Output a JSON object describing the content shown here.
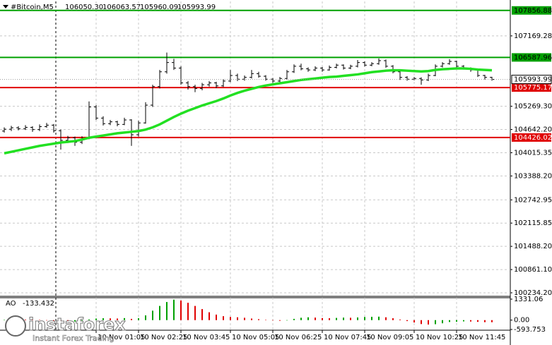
{
  "header": {
    "symbol": "#Bitcoin,M5",
    "values": [
      {
        "value": 106050.3,
        "label": "106050.30"
      },
      {
        "value": 106063.57,
        "label": "106063.57"
      },
      {
        "value": 105960.09,
        "label": "105960.09"
      },
      {
        "value": 105993.99,
        "label": "105993.99"
      }
    ]
  },
  "chart_data": {
    "type": "candlestick",
    "categories": [
      null,
      null,
      null,
      null,
      null,
      null,
      null,
      null,
      null,
      null,
      null,
      null,
      null,
      "10 Nov 01:05",
      null,
      null,
      null,
      null,
      null,
      "10 Nov 02:25",
      null,
      null,
      null,
      null,
      null,
      "10 Nov 03:45",
      null,
      null,
      null,
      null,
      null,
      null,
      "10 Nov 05:05",
      null,
      null,
      null,
      null,
      null,
      "10 Nov 06:25",
      null,
      null,
      null,
      null,
      null,
      null,
      "10 Nov 07:45",
      null,
      null,
      null,
      null,
      null,
      "10 Nov 09:05",
      null,
      null,
      null,
      null,
      null,
      null,
      "10 Nov 10:25",
      null,
      null,
      null,
      null,
      null,
      "10 Nov 11:45",
      null,
      null,
      null,
      null,
      null
    ],
    "ohlc": [
      [
        104600,
        104700,
        104560,
        104650
      ],
      [
        104650,
        104740,
        104600,
        104690
      ],
      [
        104690,
        104730,
        104620,
        104660
      ],
      [
        104660,
        104760,
        104630,
        104700
      ],
      [
        104700,
        104730,
        104580,
        104640
      ],
      [
        104640,
        104780,
        104600,
        104720
      ],
      [
        104720,
        104820,
        104690,
        104760
      ],
      [
        104760,
        104790,
        104560,
        104610
      ],
      [
        104610,
        104640,
        104100,
        104350
      ],
      [
        104350,
        104470,
        104280,
        104420
      ],
      [
        104420,
        104450,
        104200,
        104300
      ],
      [
        104300,
        104460,
        104250,
        104400
      ],
      [
        104400,
        105400,
        104380,
        105250
      ],
      [
        105250,
        105300,
        104900,
        104950
      ],
      [
        104950,
        105000,
        104750,
        104800
      ],
      [
        104800,
        104900,
        104760,
        104850
      ],
      [
        104850,
        104880,
        104730,
        104780
      ],
      [
        104780,
        104960,
        104760,
        104900
      ],
      [
        104900,
        104920,
        104200,
        104500
      ],
      [
        104500,
        104880,
        104450,
        104820
      ],
      [
        104820,
        105380,
        104800,
        105300
      ],
      [
        105300,
        105850,
        105250,
        105800
      ],
      [
        105800,
        106250,
        105750,
        106200
      ],
      [
        106200,
        106720,
        106150,
        106450
      ],
      [
        106450,
        106550,
        106250,
        106300
      ],
      [
        106300,
        106350,
        105850,
        105900
      ],
      [
        105900,
        105950,
        105720,
        105800
      ],
      [
        105800,
        105850,
        105650,
        105750
      ],
      [
        105750,
        105900,
        105700,
        105850
      ],
      [
        105850,
        105950,
        105800,
        105900
      ],
      [
        105900,
        105930,
        105760,
        105820
      ],
      [
        105820,
        106000,
        105790,
        105950
      ],
      [
        105950,
        106250,
        105920,
        106100
      ],
      [
        106100,
        106150,
        105950,
        106000
      ],
      [
        106000,
        106100,
        105960,
        106050
      ],
      [
        106050,
        106250,
        106020,
        106150
      ],
      [
        106150,
        106200,
        106040,
        106080
      ],
      [
        106080,
        106110,
        105960,
        106000
      ],
      [
        106000,
        106030,
        105900,
        105950
      ],
      [
        105950,
        106060,
        105920,
        106020
      ],
      [
        106020,
        106250,
        105990,
        106200
      ],
      [
        106200,
        106400,
        106170,
        106350
      ],
      [
        106350,
        106420,
        106240,
        106280
      ],
      [
        106280,
        106320,
        106200,
        106250
      ],
      [
        106250,
        106350,
        106220,
        106300
      ],
      [
        106300,
        106330,
        106200,
        106250
      ],
      [
        106250,
        106370,
        106230,
        106320
      ],
      [
        106320,
        106420,
        106290,
        106380
      ],
      [
        106380,
        106400,
        106260,
        106300
      ],
      [
        106300,
        106390,
        106270,
        106350
      ],
      [
        106350,
        106520,
        106320,
        106450
      ],
      [
        106450,
        106480,
        106340,
        106380
      ],
      [
        106380,
        106460,
        106350,
        106420
      ],
      [
        106420,
        106560,
        106390,
        106500
      ],
      [
        106500,
        106530,
        106310,
        106350
      ],
      [
        106350,
        106380,
        106160,
        106200
      ],
      [
        106200,
        106230,
        105980,
        106050
      ],
      [
        106050,
        106080,
        105960,
        106000
      ],
      [
        106000,
        106060,
        105970,
        106020
      ],
      [
        106020,
        106050,
        105850,
        105980
      ],
      [
        105980,
        106150,
        105950,
        106100
      ],
      [
        106100,
        106400,
        106080,
        106350
      ],
      [
        106350,
        106460,
        106320,
        106420
      ],
      [
        106420,
        106540,
        106390,
        106480
      ],
      [
        106480,
        106500,
        106310,
        106350
      ],
      [
        106350,
        106380,
        106260,
        106300
      ],
      [
        106300,
        106320,
        106200,
        106250
      ],
      [
        106250,
        106280,
        106060,
        106100
      ],
      [
        106100,
        106120,
        105990,
        106050
      ],
      [
        106050.3,
        106063.57,
        105960.09,
        105993.99
      ]
    ],
    "ma": {
      "color": "#22e022",
      "values": [
        104000,
        104040,
        104080,
        104120,
        104160,
        104200,
        104230,
        104260,
        104290,
        104310,
        104330,
        104370,
        104420,
        104450,
        104480,
        104510,
        104540,
        104560,
        104580,
        104600,
        104640,
        104700,
        104780,
        104880,
        104980,
        105070,
        105150,
        105220,
        105290,
        105350,
        105410,
        105480,
        105560,
        105630,
        105690,
        105740,
        105790,
        105830,
        105860,
        105890,
        105920,
        105950,
        105980,
        106000,
        106020,
        106040,
        106060,
        106070,
        106090,
        106110,
        106130,
        106160,
        106190,
        106210,
        106230,
        106240,
        106240,
        106230,
        106220,
        106210,
        106220,
        106250,
        106270,
        106280,
        106290,
        106290,
        106280,
        106260,
        106250,
        106240
      ]
    },
    "ylim": [
      100158,
      108100
    ],
    "yticks": [
      107169.28,
      {
        "value": 105269.3,
        "label": "105269.30"
      },
      {
        "value": 104642.2,
        "label": "104642.20"
      },
      104015.35,
      {
        "value": 103388.2,
        "label": "103388.20"
      },
      102742.95,
      102115.85,
      {
        "value": 101488.2,
        "label": "101488.20"
      },
      {
        "value": 100861.1,
        "label": "100861.10"
      },
      {
        "value": 100234.2,
        "label": "100234.20"
      }
    ],
    "grid": true,
    "levels": [
      {
        "value": 107856.88,
        "color": "#00a000",
        "text_color": "#000000"
      },
      {
        "value": 106587.96,
        "color": "#00a000",
        "text_color": "#000000"
      },
      {
        "value": 105775.17,
        "color": "#e00000",
        "text_color": "#ffffff"
      },
      {
        "value": 104426.02,
        "color": "#e00000",
        "text_color": "#ffffff"
      }
    ],
    "last_price": 105993.99,
    "indicator": {
      "name": "AO",
      "value": -133.432,
      "up_color": "#00a000",
      "down_color": "#e00000",
      "ylim": [
        -593.753,
        1331.06
      ],
      "yticks": [
        1331.06,
        {
          "value": 0,
          "label": "0.00"
        },
        -593.753
      ],
      "values": [
        20,
        30,
        40,
        35,
        20,
        10,
        -10,
        -40,
        -80,
        -100,
        -90,
        -60,
        50,
        100,
        120,
        110,
        100,
        130,
        80,
        120,
        300,
        600,
        900,
        1150,
        1300,
        1250,
        1100,
        900,
        700,
        500,
        350,
        250,
        200,
        180,
        150,
        100,
        60,
        20,
        -20,
        -40,
        0,
        80,
        150,
        180,
        160,
        130,
        120,
        140,
        160,
        150,
        170,
        200,
        210,
        220,
        180,
        120,
        40,
        -60,
        -150,
        -250,
        -280,
        -260,
        -200,
        -120,
        -100,
        -80,
        -90,
        -110,
        -130,
        -133.432
      ]
    }
  },
  "logo": {
    "name": "instaforex",
    "tagline": "Instant Forex Trading"
  }
}
